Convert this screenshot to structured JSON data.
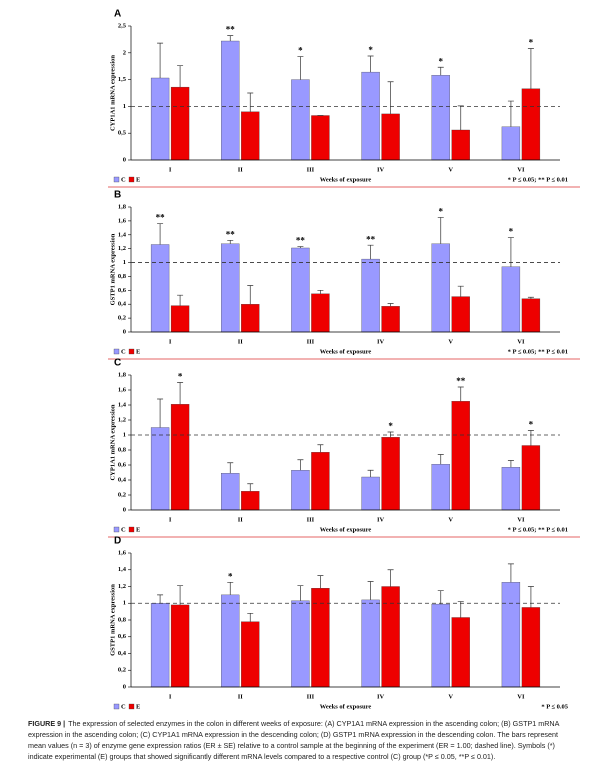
{
  "chart_data": [
    {
      "type": "bar",
      "panel": "A",
      "ylabel": "CYP1A1 mRNA expression",
      "xlabel": "Weeks of exposure",
      "note": "* P ≤ 0.05; ** P ≤ 0.01",
      "categories": [
        "I",
        "II",
        "III",
        "IV",
        "V",
        "VI"
      ],
      "series": [
        {
          "name": "C",
          "color": "#9999ff",
          "values": [
            1.53,
            2.22,
            1.5,
            1.64,
            1.58,
            0.62
          ],
          "errors": [
            0.65,
            0.1,
            0.43,
            0.3,
            0.15,
            0.48
          ],
          "stars": [
            null,
            "**",
            "*",
            "*",
            "*",
            null
          ]
        },
        {
          "name": "E",
          "color": "#ee0000",
          "values": [
            1.36,
            0.9,
            0.83,
            0.86,
            0.56,
            1.33
          ],
          "errors": [
            0.4,
            0.35,
            0,
            0.6,
            0.45,
            0.75
          ],
          "stars": [
            null,
            null,
            null,
            null,
            null,
            "*"
          ]
        }
      ],
      "ylim": [
        0,
        2.5
      ],
      "yticks": [
        0,
        {
          "value": 0.5,
          "label": "0,5"
        },
        1,
        {
          "value": 1.5,
          "label": "1,5"
        },
        2,
        {
          "value": 2.5,
          "label": "2,5"
        }
      ],
      "reference_line": 1
    },
    {
      "type": "bar",
      "panel": "B",
      "ylabel": "GSTP1 mRNA expression",
      "xlabel": "Weeks of exposure",
      "note": "* P ≤ 0.05; ** P ≤ 0.01",
      "categories": [
        "I",
        "II",
        "III",
        "IV",
        "V",
        "VI"
      ],
      "series": [
        {
          "name": "C",
          "color": "#9999ff",
          "values": [
            1.26,
            1.27,
            1.21,
            1.05,
            1.27,
            0.94
          ],
          "errors": [
            0.3,
            0.05,
            0.02,
            0.2,
            0.38,
            0.42
          ],
          "stars": [
            "**",
            "**",
            "**",
            "**",
            "*",
            "*"
          ]
        },
        {
          "name": "E",
          "color": "#ee0000",
          "values": [
            0.38,
            0.4,
            0.55,
            0.37,
            0.51,
            0.48
          ],
          "errors": [
            0.15,
            0.27,
            0.05,
            0.04,
            0.15,
            0.02
          ],
          "stars": [
            null,
            null,
            null,
            null,
            null,
            null
          ]
        }
      ],
      "ylim": [
        0,
        1.8
      ],
      "yticks": [
        0,
        {
          "value": 0.2,
          "label": "0,2"
        },
        {
          "value": 0.4,
          "label": "0,4"
        },
        {
          "value": 0.6,
          "label": "0,6"
        },
        {
          "value": 0.8,
          "label": "0,8"
        },
        1,
        {
          "value": 1.2,
          "label": "1,2"
        },
        {
          "value": 1.4,
          "label": "1,4"
        },
        {
          "value": 1.6,
          "label": "1,6"
        },
        {
          "value": 1.8,
          "label": "1,8"
        }
      ],
      "reference_line": 1
    },
    {
      "type": "bar",
      "panel": "C",
      "ylabel": "CYP1A1 mRNA expression",
      "xlabel": "Weeks of exposure",
      "note": "* P ≤ 0.05; ** P ≤ 0.01",
      "categories": [
        "I",
        "II",
        "III",
        "IV",
        "V",
        "VI"
      ],
      "series": [
        {
          "name": "C",
          "color": "#9999ff",
          "values": [
            1.1,
            0.49,
            0.53,
            0.44,
            0.61,
            0.57
          ],
          "errors": [
            0.38,
            0.14,
            0.14,
            0.09,
            0.13,
            0.09
          ],
          "stars": [
            null,
            null,
            null,
            null,
            null,
            null
          ]
        },
        {
          "name": "E",
          "color": "#ee0000",
          "values": [
            1.41,
            0.25,
            0.77,
            0.97,
            1.45,
            0.86
          ],
          "errors": [
            0.29,
            0.1,
            0.1,
            0.07,
            0.19,
            0.2
          ],
          "stars": [
            "*",
            null,
            null,
            "*",
            "**",
            "*"
          ]
        }
      ],
      "ylim": [
        0,
        1.8
      ],
      "yticks": [
        0,
        {
          "value": 0.2,
          "label": "0,2"
        },
        {
          "value": 0.4,
          "label": "0,4"
        },
        {
          "value": 0.6,
          "label": "0,6"
        },
        {
          "value": 0.8,
          "label": "0,8"
        },
        1,
        {
          "value": 1.2,
          "label": "1,2"
        },
        {
          "value": 1.4,
          "label": "1,4"
        },
        {
          "value": 1.6,
          "label": "1,6"
        },
        {
          "value": 1.8,
          "label": "1,8"
        }
      ],
      "reference_line": 1
    },
    {
      "type": "bar",
      "panel": "D",
      "ylabel": "GSTP1 mRNA expression",
      "xlabel": "Weeks of exposure",
      "note": "* P ≤ 0.05",
      "categories": [
        "I",
        "II",
        "III",
        "IV",
        "V",
        "VI"
      ],
      "series": [
        {
          "name": "C",
          "color": "#9999ff",
          "values": [
            1.0,
            1.1,
            1.03,
            1.04,
            0.99,
            1.25
          ],
          "errors": [
            0.1,
            0.15,
            0.18,
            0.22,
            0.16,
            0.22
          ],
          "stars": [
            null,
            "*",
            null,
            null,
            null,
            null
          ]
        },
        {
          "name": "E",
          "color": "#ee0000",
          "values": [
            0.98,
            0.78,
            1.18,
            1.2,
            0.83,
            0.95
          ],
          "errors": [
            0.23,
            0.1,
            0.15,
            0.2,
            0.19,
            0.25
          ],
          "stars": [
            null,
            null,
            null,
            null,
            null,
            null
          ]
        }
      ],
      "ylim": [
        0,
        1.6
      ],
      "yticks": [
        0,
        {
          "value": 0.2,
          "label": "0,2"
        },
        {
          "value": 0.4,
          "label": "0,4"
        },
        {
          "value": 0.6,
          "label": "0,6"
        },
        {
          "value": 0.8,
          "label": "0,8"
        },
        1,
        {
          "value": 1.2,
          "label": "1,2"
        },
        {
          "value": 1.4,
          "label": "1,4"
        },
        {
          "value": 1.6,
          "label": "1,6"
        }
      ],
      "reference_line": 1
    }
  ],
  "caption_label": "FIGURE 9 |",
  "caption": "The expression of selected enzymes in the colon in different weeks of exposure: (A) CYP1A1 mRNA expression in the ascending colon; (B) GSTP1 mRNA expression in the ascending colon; (C) CYP1A1 mRNA expression in the descending colon; (D) GSTP1 mRNA expression in the descending colon. The bars represent mean values (n = 3) of enzyme gene expression ratios (ER ± SE) relative to a control sample at the beginning of the experiment (ER = 1.00; dashed line). Symbols (*) indicate experimental (E) groups that showed significantly different mRNA levels compared to a respective control (C) group (*P ≤ 0.05, **P ≤ 0.01)."
}
